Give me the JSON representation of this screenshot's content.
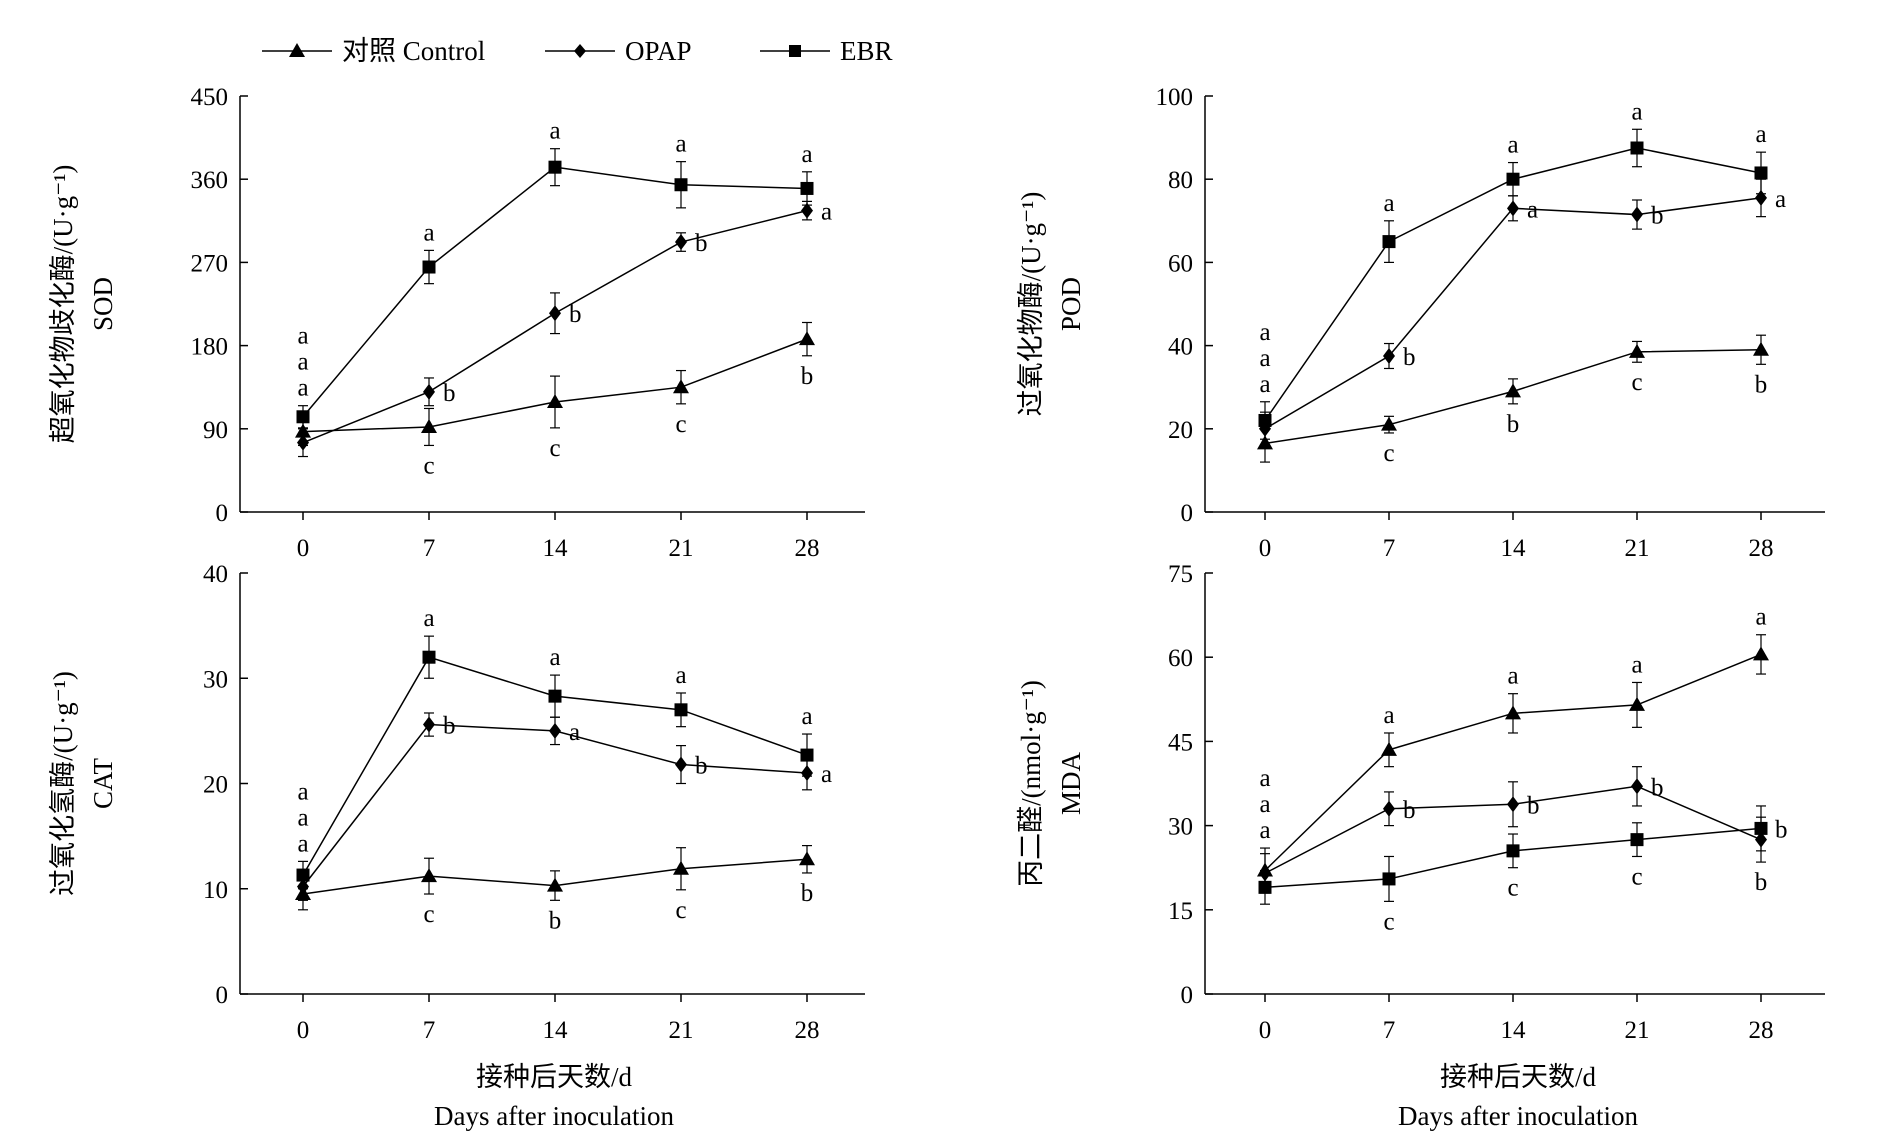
{
  "legend": [
    {
      "label": "对照 Control",
      "marker": "triangle"
    },
    {
      "label": "OPAP",
      "marker": "diamond"
    },
    {
      "label": "EBR",
      "marker": "square"
    }
  ],
  "x_caption": {
    "cn": "接种后天数/d",
    "en": "Days after inoculation"
  },
  "chart_data": [
    {
      "type": "line",
      "ylabel_cn": "超氧化物歧化酶/(U·g⁻¹)",
      "ylabel_en": "SOD",
      "x": [
        0,
        7,
        14,
        21,
        28
      ],
      "xticks": [
        "0",
        "7",
        "14",
        "21",
        "28"
      ],
      "ylim": [
        0,
        450
      ],
      "yticks": [
        0,
        90,
        180,
        270,
        360,
        450
      ],
      "grid": false,
      "series": [
        {
          "name": "对照 Control",
          "marker": "triangle",
          "values": [
            87,
            92,
            119,
            135,
            187
          ],
          "errors": [
            15,
            20,
            28,
            18,
            18
          ],
          "sig": [
            "a",
            "c",
            "c",
            "c",
            "b"
          ]
        },
        {
          "name": "OPAP",
          "marker": "diamond",
          "values": [
            75,
            130,
            215,
            292,
            326
          ],
          "errors": [
            15,
            15,
            22,
            10,
            10
          ],
          "sig": [
            "a",
            "b",
            "b",
            "b",
            "a"
          ]
        },
        {
          "name": "EBR",
          "marker": "square",
          "values": [
            103,
            265,
            373,
            354,
            350
          ],
          "errors": [
            12,
            18,
            20,
            25,
            18
          ],
          "sig": [
            "a",
            "a",
            "a",
            "a",
            "a"
          ]
        }
      ]
    },
    {
      "type": "line",
      "ylabel_cn": "过氧化物酶/(U·g⁻¹)",
      "ylabel_en": "POD",
      "x": [
        0,
        7,
        14,
        21,
        28
      ],
      "xticks": [
        "0",
        "7",
        "14",
        "21",
        "28"
      ],
      "ylim": [
        0,
        100
      ],
      "yticks": [
        0,
        20,
        40,
        60,
        80,
        100
      ],
      "grid": false,
      "series": [
        {
          "name": "对照 Control",
          "marker": "triangle",
          "values": [
            16.5,
            21,
            29,
            38.5,
            39
          ],
          "errors": [
            4.5,
            2,
            3,
            2.5,
            3.5
          ],
          "sig": [
            "a",
            "c",
            "b",
            "c",
            "b"
          ]
        },
        {
          "name": "OPAP",
          "marker": "diamond",
          "values": [
            20,
            37.5,
            73,
            71.5,
            75.5
          ],
          "errors": [
            4,
            3,
            3,
            3.5,
            4.5
          ],
          "sig": [
            "a",
            "b",
            "a",
            "b",
            "a"
          ]
        },
        {
          "name": "EBR",
          "marker": "square",
          "values": [
            22,
            65,
            80,
            87.5,
            81.5
          ],
          "errors": [
            4.5,
            5,
            4,
            4.5,
            5
          ],
          "sig": [
            "a",
            "a",
            "a",
            "a",
            "a"
          ]
        }
      ]
    },
    {
      "type": "line",
      "ylabel_cn": "过氧化氢酶/(U·g⁻¹)",
      "ylabel_en": "CAT",
      "x": [
        0,
        7,
        14,
        21,
        28
      ],
      "xticks": [
        "0",
        "7",
        "14",
        "21",
        "28"
      ],
      "ylim": [
        0,
        40
      ],
      "yticks": [
        0,
        10,
        20,
        30,
        40
      ],
      "grid": false,
      "series": [
        {
          "name": "对照 Control",
          "marker": "triangle",
          "values": [
            9.5,
            11.2,
            10.3,
            11.9,
            12.8
          ],
          "errors": [
            1.5,
            1.7,
            1.4,
            2,
            1.3
          ],
          "sig": [
            "a",
            "c",
            "b",
            "c",
            "b"
          ]
        },
        {
          "name": "OPAP",
          "marker": "diamond",
          "values": [
            10.2,
            25.6,
            25,
            21.8,
            21
          ],
          "errors": [
            1.3,
            1.1,
            1.3,
            1.8,
            1.6
          ],
          "sig": [
            "a",
            "b",
            "a",
            "b",
            "a"
          ]
        },
        {
          "name": "EBR",
          "marker": "square",
          "values": [
            11.3,
            32,
            28.3,
            27,
            22.7
          ],
          "errors": [
            1.3,
            2,
            2,
            1.6,
            2
          ],
          "sig": [
            "a",
            "a",
            "a",
            "a",
            "a"
          ]
        }
      ]
    },
    {
      "type": "line",
      "ylabel_cn": "丙二醛/(nmol·g⁻¹)",
      "ylabel_en": "MDA",
      "x": [
        0,
        7,
        14,
        21,
        28
      ],
      "xticks": [
        "0",
        "7",
        "14",
        "21",
        "28"
      ],
      "ylim": [
        0,
        75
      ],
      "yticks": [
        0,
        15,
        30,
        45,
        60,
        75
      ],
      "grid": false,
      "series": [
        {
          "name": "对照 Control",
          "marker": "triangle",
          "values": [
            22,
            43.5,
            50,
            51.5,
            60.5
          ],
          "errors": [
            4,
            3,
            3.5,
            4,
            3.5
          ],
          "sig": [
            "a",
            "a",
            "a",
            "a",
            "a"
          ]
        },
        {
          "name": "OPAP",
          "marker": "diamond",
          "values": [
            21.5,
            33,
            33.8,
            37,
            27.5
          ],
          "errors": [
            3.5,
            3,
            4,
            3.5,
            4
          ],
          "sig": [
            "a",
            "b",
            "b",
            "b",
            "b"
          ]
        },
        {
          "name": "EBR",
          "marker": "square",
          "values": [
            19,
            20.5,
            25.5,
            27.5,
            29.5
          ],
          "errors": [
            3,
            4,
            3,
            3,
            4
          ],
          "sig": [
            "a",
            "c",
            "c",
            "c",
            "b"
          ]
        }
      ]
    }
  ]
}
